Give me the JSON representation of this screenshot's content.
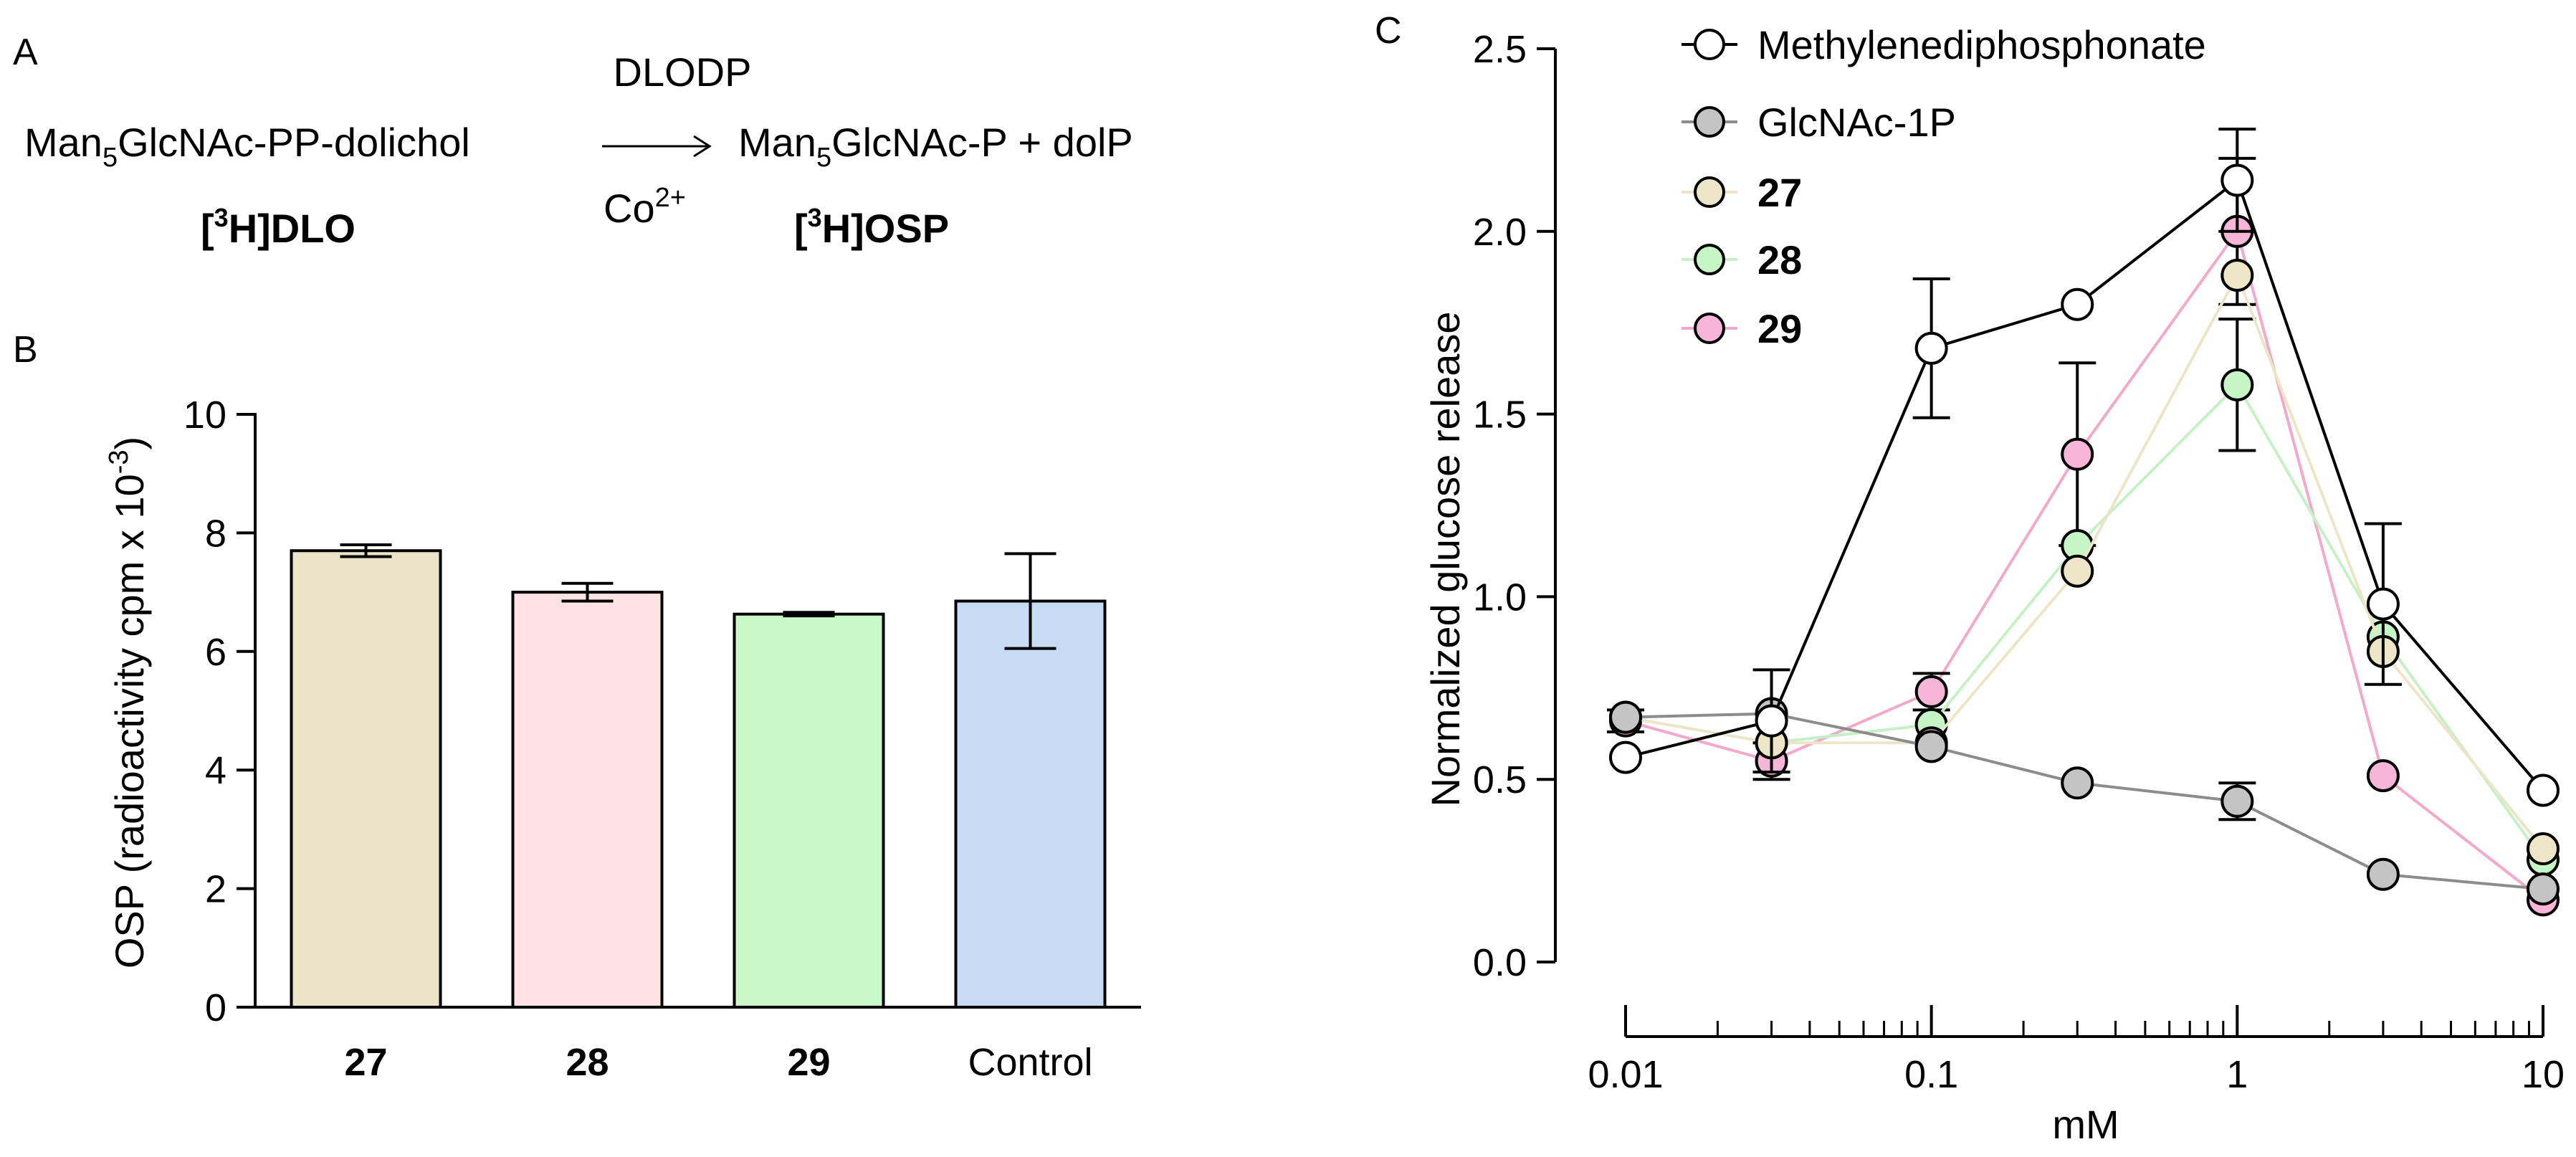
{
  "panel_labels": {
    "a": "A",
    "b": "B",
    "c": "C"
  },
  "scheme": {
    "reactant_prefix": "Man",
    "reactant_sub": "5",
    "reactant_suffix": "GlcNAc-PP-dolichol",
    "enzyme": "DLODP",
    "cofactor_base": "Co",
    "cofactor_sup": "2+",
    "product_prefix": "Man",
    "product_sub": "5",
    "product_suffix": "GlcNAc-P + dolP",
    "reactant_label_open": "[",
    "reactant_label_sup": "3",
    "reactant_label_rest": "H]DLO",
    "product_label_open": "[",
    "product_label_sup": "3",
    "product_label_rest": "H]OSP"
  },
  "chart_data": [
    {
      "type": "bar",
      "panel": "B",
      "categories": [
        "27",
        "28",
        "29",
        "Control"
      ],
      "category_bold": [
        true,
        true,
        true,
        false
      ],
      "values": [
        7.7,
        7.0,
        6.63,
        6.85
      ],
      "errors": [
        0.1,
        0.15,
        0.03,
        0.8
      ],
      "colors": [
        "#ebe4c9",
        "#fde2e2",
        "#c9f8c8",
        "#c7dbf4"
      ],
      "ylabel_main": "OSP (radioactivity cpm x 10",
      "ylabel_sup": "-3",
      "ylabel_close": ")",
      "ylim": [
        0,
        10
      ],
      "yticks": [
        0,
        2,
        4,
        6,
        8,
        10
      ],
      "ytick_labels": [
        "0",
        "2",
        "4",
        "6",
        "8",
        "10"
      ]
    },
    {
      "type": "line",
      "panel": "C",
      "xscale": "log",
      "xlabel": "mM",
      "ylabel": "Normalized glucose release",
      "xlim": [
        0.01,
        10
      ],
      "ylim": [
        0,
        2.5
      ],
      "xticks": [
        0.01,
        0.1,
        1,
        10
      ],
      "xtick_labels": [
        "0.01",
        "0.1",
        "1",
        "10"
      ],
      "yticks": [
        0,
        0.5,
        1.0,
        1.5,
        2.0,
        2.5
      ],
      "ytick_labels": [
        "0.0",
        "0.5",
        "1.0",
        "1.5",
        "2.0",
        "2.5"
      ],
      "series": [
        {
          "name": "29",
          "bold": true,
          "fill": "#f7b6d7",
          "stroke": "#000000",
          "line": "#f3a9c9",
          "x": [
            0.01,
            0.03,
            0.1,
            0.3,
            1,
            3,
            10
          ],
          "y": [
            0.66,
            0.55,
            0.74,
            1.39,
            2.0,
            0.51,
            0.17
          ],
          "err": [
            0.03,
            0.05,
            0.05,
            0.25,
            0.2,
            0.0,
            0.0
          ]
        },
        {
          "name": "28",
          "bold": true,
          "fill": "#c6f5c6",
          "stroke": "#000000",
          "line": "#c6f0c6",
          "x": [
            0.01,
            0.03,
            0.1,
            0.3,
            1,
            3,
            10
          ],
          "y": [
            0.67,
            0.6,
            0.65,
            1.14,
            1.58,
            0.89,
            0.28
          ],
          "err": [
            0.0,
            0.0,
            0.0,
            0.0,
            0.18,
            0.0,
            0.0
          ]
        },
        {
          "name": "27",
          "bold": true,
          "fill": "#ede5c8",
          "stroke": "#000000",
          "line": "#ede5c8",
          "x": [
            0.01,
            0.03,
            0.1,
            0.3,
            1,
            3,
            10
          ],
          "y": [
            0.67,
            0.6,
            0.6,
            1.07,
            1.88,
            0.85,
            0.31
          ],
          "err": [
            0.0,
            0.0,
            0.0,
            0.0,
            0.0,
            0.0,
            0.0
          ]
        },
        {
          "name": "GlcNAc-1P",
          "bold": false,
          "fill": "#c4c4c4",
          "stroke": "#000000",
          "line": "#8c8c8c",
          "x": [
            0.01,
            0.03,
            0.1,
            0.3,
            1,
            3,
            10
          ],
          "y": [
            0.67,
            0.68,
            0.59,
            0.49,
            0.44,
            0.24,
            0.2
          ],
          "err": [
            0.0,
            0.0,
            0.0,
            0.0,
            0.05,
            0.0,
            0.0
          ]
        },
        {
          "name": "Methylenediphosphonate",
          "bold": false,
          "fill": "#ffffff",
          "stroke": "#000000",
          "line": "#000000",
          "x": [
            0.01,
            0.03,
            0.1,
            0.3,
            1,
            3,
            10
          ],
          "y": [
            0.56,
            0.66,
            1.68,
            1.8,
            2.14,
            0.98,
            0.47
          ],
          "err": [
            0.0,
            0.14,
            0.19,
            0.0,
            0.14,
            0.22,
            0.0
          ]
        }
      ],
      "legend_order": [
        "Methylenediphosphonate",
        "GlcNAc-1P",
        "27",
        "28",
        "29"
      ],
      "legend_position": "top-left"
    }
  ]
}
